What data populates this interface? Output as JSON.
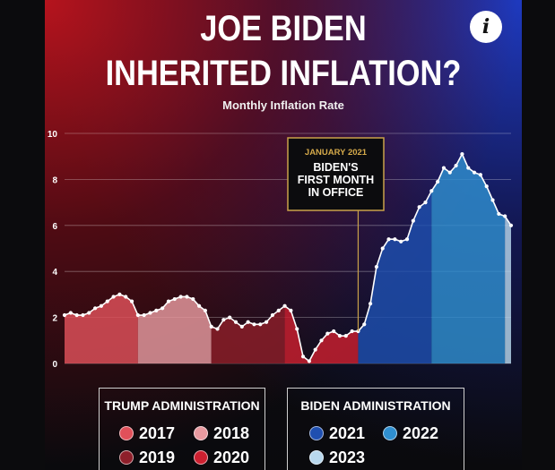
{
  "header": {
    "title_line1": "JOE BIDEN",
    "title_line2": "INHERITED INFLATION?",
    "subtitle": "Monthly Inflation Rate",
    "info_icon": "info-icon",
    "info_glyph": "i"
  },
  "annotation": {
    "line1": "JANUARY 2021",
    "line2": "BIDEN'S",
    "line3": "FIRST MONTH",
    "line4": "IN OFFICE",
    "x": 48
  },
  "legend_trump": {
    "title": "TRUMP ADMINISTRATION",
    "items": [
      {
        "label": "2017",
        "color": "#e0505a"
      },
      {
        "label": "2018",
        "color": "#e89aa0"
      },
      {
        "label": "2019",
        "color": "#8e1f2a"
      },
      {
        "label": "2020",
        "color": "#cc2030"
      }
    ]
  },
  "legend_biden": {
    "title": "BIDEN ADMINISTRATION",
    "items": [
      {
        "label": "2021",
        "color": "#1f4fb0"
      },
      {
        "label": "2022",
        "color": "#2f8fd0"
      },
      {
        "label": "2023",
        "color": "#b8d8ee"
      }
    ]
  },
  "chart_data": {
    "type": "area",
    "title": "Monthly Inflation Rate",
    "xlabel": "",
    "ylabel": "",
    "ylim": [
      0,
      10
    ],
    "y_ticks": [
      "0",
      "2",
      "4",
      "6",
      "8",
      "10"
    ],
    "grid": true,
    "series": [
      {
        "name": "2017",
        "color": "#e0505a",
        "x": [
          0,
          1,
          2,
          3,
          4,
          5,
          6,
          7,
          8,
          9,
          10,
          11
        ],
        "values": [
          2.1,
          2.2,
          2.1,
          2.1,
          2.2,
          2.4,
          2.5,
          2.7,
          2.9,
          3.0,
          2.9,
          2.7
        ]
      },
      {
        "name": "2018",
        "color": "#e89aa0",
        "x": [
          12,
          13,
          14,
          15,
          16,
          17,
          18,
          19,
          20,
          21,
          22,
          23
        ],
        "values": [
          2.1,
          2.1,
          2.2,
          2.3,
          2.4,
          2.7,
          2.8,
          2.9,
          2.9,
          2.8,
          2.5,
          2.3
        ]
      },
      {
        "name": "2019",
        "color": "#8e1f2a",
        "x": [
          24,
          25,
          26,
          27,
          28,
          29,
          30,
          31,
          32,
          33,
          34,
          35
        ],
        "values": [
          1.6,
          1.5,
          1.9,
          2.0,
          1.8,
          1.6,
          1.8,
          1.7,
          1.7,
          1.8,
          2.1,
          2.3
        ]
      },
      {
        "name": "2020",
        "color": "#cc2030",
        "x": [
          36,
          37,
          38,
          39,
          40,
          41,
          42,
          43,
          44,
          45,
          46,
          47
        ],
        "values": [
          2.5,
          2.3,
          1.5,
          0.3,
          0.1,
          0.6,
          1.0,
          1.3,
          1.4,
          1.2,
          1.2,
          1.4
        ]
      },
      {
        "name": "2021",
        "color": "#1f4fb0",
        "x": [
          48,
          49,
          50,
          51,
          52,
          53,
          54,
          55,
          56,
          57,
          58,
          59
        ],
        "values": [
          1.4,
          1.7,
          2.6,
          4.2,
          5.0,
          5.4,
          5.4,
          5.3,
          5.4,
          6.2,
          6.8,
          7.0
        ]
      },
      {
        "name": "2022",
        "color": "#2f8fd0",
        "x": [
          60,
          61,
          62,
          63,
          64,
          65,
          66,
          67,
          68,
          69,
          70,
          71
        ],
        "values": [
          7.5,
          7.9,
          8.5,
          8.3,
          8.6,
          9.1,
          8.5,
          8.3,
          8.2,
          7.7,
          7.1,
          6.5
        ]
      },
      {
        "name": "2023",
        "color": "#b8d8ee",
        "x": [
          72,
          73
        ],
        "values": [
          6.4,
          6.0
        ]
      }
    ]
  }
}
